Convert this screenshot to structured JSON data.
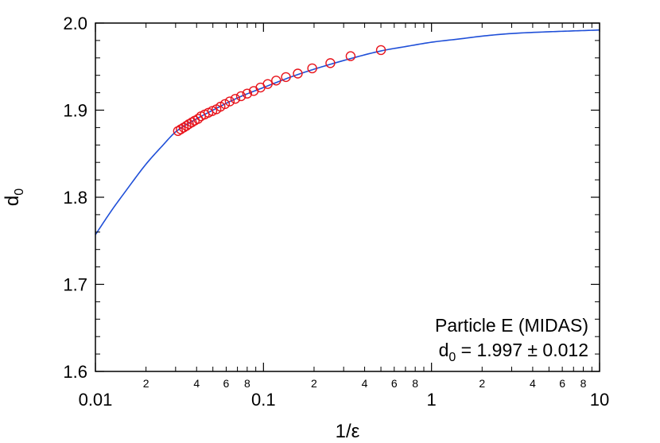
{
  "chart_data": {
    "type": "scatter",
    "xscale": "log",
    "xlim": [
      0.01,
      10
    ],
    "ylim": [
      1.6,
      2.0
    ],
    "grid": false,
    "xlabel": "1/ε",
    "ylabel_main": "d",
    "ylabel_sub": "0",
    "x_major_ticks": [
      {
        "value": 0.01,
        "label": "0.01"
      },
      {
        "value": 0.1,
        "label": "0.1"
      },
      {
        "value": 1,
        "label": "1"
      },
      {
        "value": 10,
        "label": "10"
      }
    ],
    "x_minor_ticks": [
      {
        "value": 0.02,
        "label": "2"
      },
      {
        "value": 0.03,
        "label": ""
      },
      {
        "value": 0.04,
        "label": "4"
      },
      {
        "value": 0.05,
        "label": ""
      },
      {
        "value": 0.06,
        "label": "6"
      },
      {
        "value": 0.07,
        "label": ""
      },
      {
        "value": 0.08,
        "label": "8"
      },
      {
        "value": 0.09,
        "label": ""
      },
      {
        "value": 0.2,
        "label": "2"
      },
      {
        "value": 0.3,
        "label": ""
      },
      {
        "value": 0.4,
        "label": "4"
      },
      {
        "value": 0.5,
        "label": ""
      },
      {
        "value": 0.6,
        "label": "6"
      },
      {
        "value": 0.7,
        "label": ""
      },
      {
        "value": 0.8,
        "label": "8"
      },
      {
        "value": 0.9,
        "label": ""
      },
      {
        "value": 2,
        "label": "2"
      },
      {
        "value": 3,
        "label": ""
      },
      {
        "value": 4,
        "label": "4"
      },
      {
        "value": 5,
        "label": ""
      },
      {
        "value": 6,
        "label": "6"
      },
      {
        "value": 7,
        "label": ""
      },
      {
        "value": 8,
        "label": "8"
      },
      {
        "value": 9,
        "label": ""
      }
    ],
    "y_major_ticks": [
      {
        "value": 1.6,
        "label": "1.6"
      },
      {
        "value": 1.7,
        "label": "1.7"
      },
      {
        "value": 1.8,
        "label": "1.8"
      },
      {
        "value": 1.9,
        "label": "1.9"
      },
      {
        "value": 2.0,
        "label": "2.0"
      }
    ],
    "y_minor_step": 0.02,
    "series": [
      {
        "kind": "markers",
        "marker": "open-circle",
        "color": "#e8141c",
        "x": [
          0.031,
          0.0322,
          0.0335,
          0.0348,
          0.036,
          0.0375,
          0.039,
          0.0408,
          0.0425,
          0.0447,
          0.047,
          0.0496,
          0.0525,
          0.0555,
          0.059,
          0.063,
          0.068,
          0.0735,
          0.08,
          0.0875,
          0.096,
          0.106,
          0.119,
          0.136,
          0.16,
          0.195,
          0.25,
          0.33,
          0.5
        ],
        "y": [
          1.876,
          1.878,
          1.88,
          1.882,
          1.884,
          1.886,
          1.888,
          1.89,
          1.893,
          1.895,
          1.897,
          1.899,
          1.901,
          1.904,
          1.907,
          1.91,
          1.913,
          1.916,
          1.919,
          1.922,
          1.926,
          1.93,
          1.934,
          1.938,
          1.942,
          1.948,
          1.954,
          1.962,
          1.969
        ]
      },
      {
        "kind": "line",
        "color": "#1f4fd8",
        "x": [
          0.01,
          0.0125,
          0.015,
          0.02,
          0.025,
          0.03,
          0.04,
          0.05,
          0.07,
          0.1,
          0.15,
          0.2,
          0.3,
          0.5,
          0.7,
          1.0,
          1.5,
          2.0,
          3.0,
          5.0,
          7.0,
          10.0
        ],
        "y": [
          1.757,
          1.785,
          1.806,
          1.838,
          1.859,
          1.875,
          1.89,
          1.9,
          1.914,
          1.926,
          1.939,
          1.947,
          1.957,
          1.968,
          1.973,
          1.978,
          1.982,
          1.985,
          1.988,
          1.99,
          1.991,
          1.992
        ]
      }
    ],
    "annotation": {
      "line1": "Particle E (MIDAS)",
      "line2_main": "d",
      "line2_sub": "0",
      "line2_rest": " = 1.997 ± 0.012"
    }
  }
}
